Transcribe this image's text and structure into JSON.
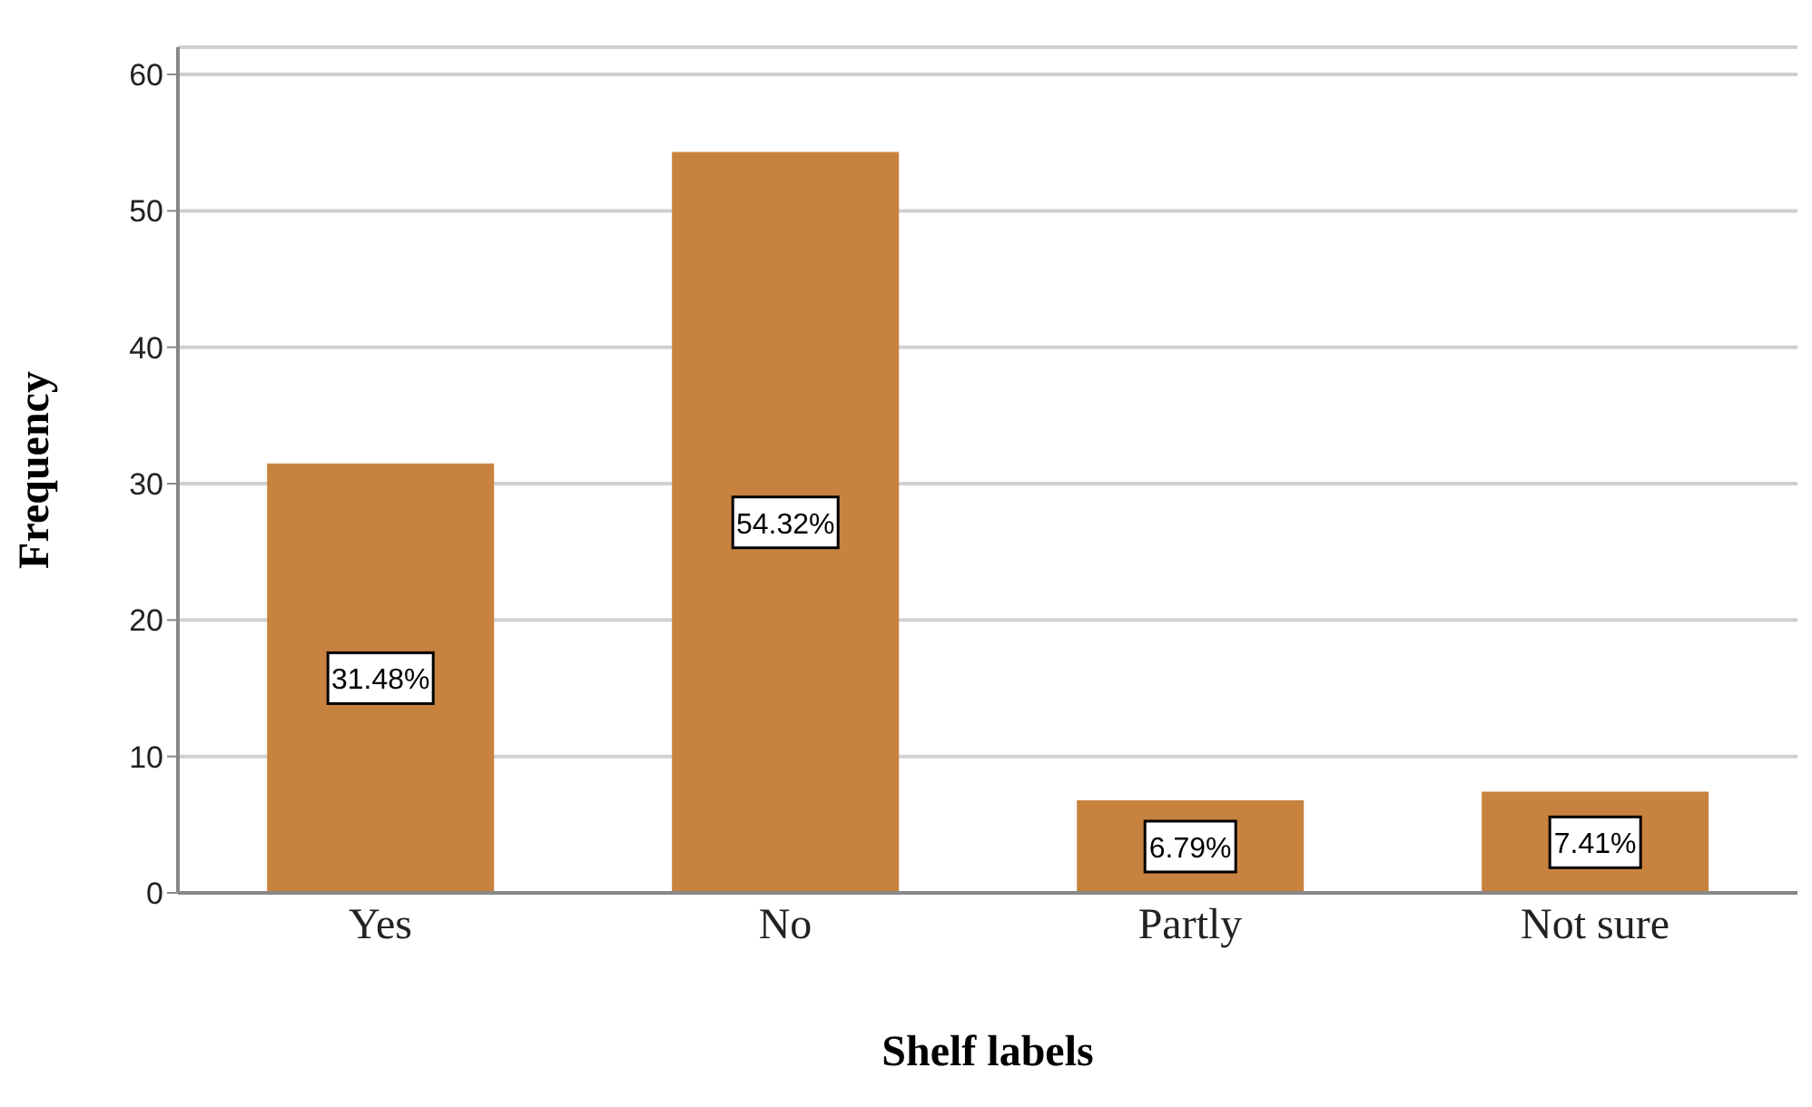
{
  "chart_data": {
    "type": "bar",
    "xlabel": "Shelf labels",
    "ylabel": "Frequency",
    "categories": [
      "Yes",
      "No",
      "Partly",
      "Not sure"
    ],
    "values": [
      31.48,
      54.32,
      6.79,
      7.41
    ],
    "value_labels": [
      "31.48%",
      "54.32%",
      "6.79%",
      "7.41%"
    ],
    "color": "#c8823f",
    "ylim": [
      0,
      62
    ],
    "yticks": [
      0,
      10,
      20,
      30,
      40,
      50,
      60
    ],
    "grid": "y"
  }
}
